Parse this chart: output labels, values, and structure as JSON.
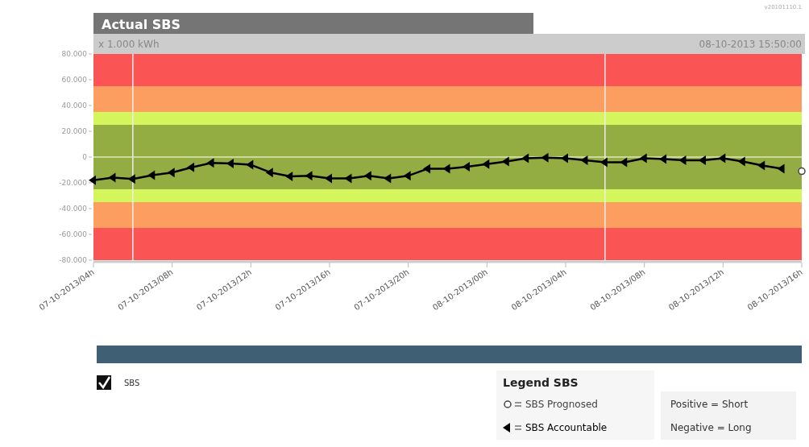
{
  "chart_data": {
    "type": "line",
    "title": "Actual SBS",
    "ylabel": "x 1.000 kWh",
    "legend_title": "Legend SBS",
    "legend": "bottom right",
    "line_style": "solid",
    "xlim": [
      "2013-10-07T04:00",
      "2013-10-08T16:00"
    ],
    "xticks": [
      {
        "value": "2013-10-07T04:00",
        "label": "07-10-2013/04h"
      },
      {
        "value": "2013-10-07T08:00",
        "label": "07-10-2013/08h"
      },
      {
        "value": "2013-10-07T12:00",
        "label": "07-10-2013/12h"
      },
      {
        "value": "2013-10-07T16:00",
        "label": "07-10-2013/16h"
      },
      {
        "value": "2013-10-07T20:00",
        "label": "07-10-2013/20h"
      },
      {
        "value": "2013-10-08T00:00",
        "label": "08-10-2013/00h"
      },
      {
        "value": "2013-10-08T04:00",
        "label": "08-10-2013/04h"
      },
      {
        "value": "2013-10-08T08:00",
        "label": "08-10-2013/08h"
      },
      {
        "value": "2013-10-08T12:00",
        "label": "08-10-2013/12h"
      },
      {
        "value": "2013-10-08T16:00",
        "label": "08-10-2013/16h"
      }
    ],
    "ylim": [
      -80,
      80
    ],
    "yticks": [
      {
        "value": -80,
        "label": "-80.000"
      },
      {
        "value": -60,
        "label": "-60.000"
      },
      {
        "value": -40,
        "label": "-40.000"
      },
      {
        "value": -20,
        "label": "-20.000"
      },
      0,
      {
        "value": 20,
        "label": "20.000"
      },
      {
        "value": 40,
        "label": "40.000"
      },
      {
        "value": 60,
        "label": "60.000"
      },
      {
        "value": 80,
        "label": "80.000"
      }
    ],
    "x": [
      "2013-10-07T04:00",
      "2013-10-07T05:00",
      "2013-10-07T06:00",
      "2013-10-07T07:00",
      "2013-10-07T08:00",
      "2013-10-07T09:00",
      "2013-10-07T10:00",
      "2013-10-07T11:00",
      "2013-10-07T12:00",
      "2013-10-07T13:00",
      "2013-10-07T14:00",
      "2013-10-07T15:00",
      "2013-10-07T16:00",
      "2013-10-07T17:00",
      "2013-10-07T18:00",
      "2013-10-07T19:00",
      "2013-10-07T20:00",
      "2013-10-07T21:00",
      "2013-10-07T22:00",
      "2013-10-07T23:00",
      "2013-10-08T00:00",
      "2013-10-08T01:00",
      "2013-10-08T02:00",
      "2013-10-08T03:00",
      "2013-10-08T04:00",
      "2013-10-08T05:00",
      "2013-10-08T06:00",
      "2013-10-08T07:00",
      "2013-10-08T08:00",
      "2013-10-08T09:00",
      "2013-10-08T10:00",
      "2013-10-08T11:00",
      "2013-10-08T12:00",
      "2013-10-08T13:00",
      "2013-10-08T14:00",
      "2013-10-08T15:00"
    ],
    "series": [
      {
        "name": "SBS Accountable",
        "type": "line",
        "marker": "triangle",
        "color": "#000000",
        "values": [
          -18,
          -16,
          -17,
          -14,
          -12,
          -8,
          -4.5,
          -5,
          -6,
          -12,
          -15,
          -14.5,
          -16.5,
          -16.5,
          -14.5,
          -16.5,
          -14.5,
          -9,
          -9,
          -7.5,
          -5.5,
          -3.5,
          -1,
          -0.5,
          -1,
          -2.5,
          -4,
          -4,
          -1,
          -1.5,
          -2.5,
          -2.5,
          -1,
          -3.5,
          -6.5,
          -9
        ]
      },
      {
        "name": "SBS Prognosed",
        "type": "scatter",
        "marker": "circle",
        "color": "#444444",
        "x": [
          "2013-10-08T16:00"
        ],
        "values": [
          -11
        ]
      }
    ],
    "bands": [
      {
        "axis": "y",
        "from": 55,
        "to": 80,
        "color": "#fb5454"
      },
      {
        "axis": "y",
        "from": 35,
        "to": 55,
        "color": "#fb9e5f"
      },
      {
        "axis": "y",
        "from": 25,
        "to": 35,
        "color": "#d5f55c"
      },
      {
        "axis": "y",
        "from": -25,
        "to": 25,
        "color": "#93ad43"
      },
      {
        "axis": "y",
        "from": -35,
        "to": -25,
        "color": "#d5f55c"
      },
      {
        "axis": "y",
        "from": -55,
        "to": -35,
        "color": "#fb9e5f"
      },
      {
        "axis": "y",
        "from": -80,
        "to": -55,
        "color": "#fb5454"
      }
    ],
    "ref_lines": [
      {
        "axis": "x",
        "value": "2013-10-07T06:00",
        "color": "#eeeeee"
      },
      {
        "axis": "x",
        "value": "2013-10-08T06:00",
        "color": "#eeeeee"
      },
      {
        "axis": "y",
        "value": 0,
        "color": "#dfe8b8"
      }
    ],
    "annotations": [
      "08-10-2013 15:50:00",
      "v20101110.1",
      "Positive = Short",
      "Negative = Long",
      "SBS"
    ]
  }
}
